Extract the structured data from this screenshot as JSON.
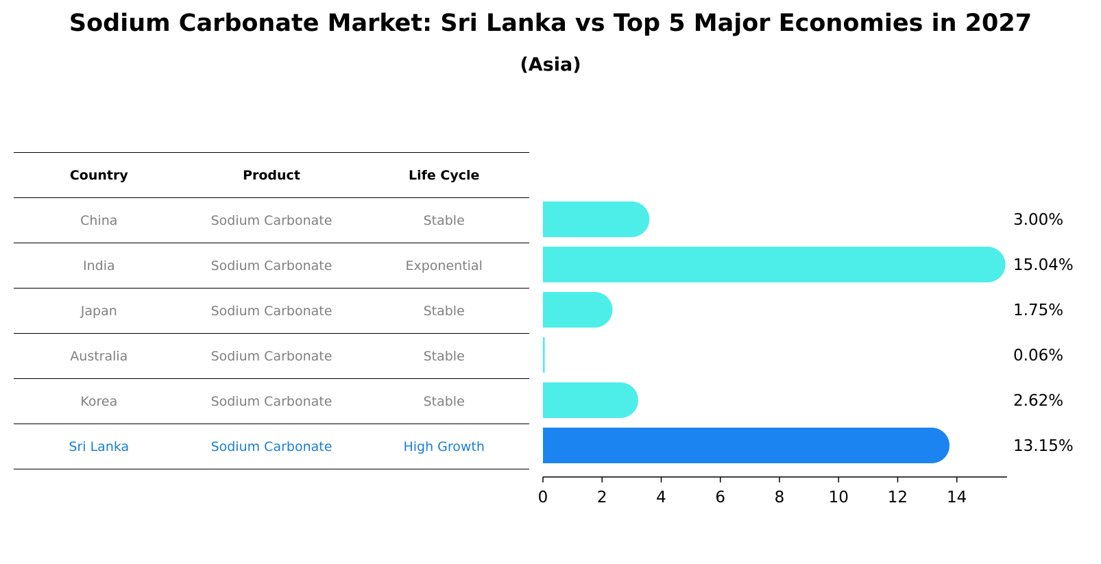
{
  "title": "Sodium Carbonate Market: Sri Lanka vs Top 5 Major Economies in 2027",
  "subtitle": "(Asia)",
  "table": {
    "headers": [
      "Country",
      "Product",
      "Life Cycle"
    ],
    "rows": [
      {
        "country": "China",
        "product": "Sodium Carbonate",
        "life_cycle": "Stable"
      },
      {
        "country": "India",
        "product": "Sodium Carbonate",
        "life_cycle": "Exponential"
      },
      {
        "country": "Japan",
        "product": "Sodium Carbonate",
        "life_cycle": "Stable"
      },
      {
        "country": "Australia",
        "product": "Sodium Carbonate",
        "life_cycle": "Stable"
      },
      {
        "country": "Korea",
        "product": "Sodium Carbonate",
        "life_cycle": "Stable"
      },
      {
        "country": "Sri Lanka",
        "product": "Sodium Carbonate",
        "life_cycle": "High Growth"
      }
    ]
  },
  "colors": {
    "bar": "#4deee8",
    "highlight_bar": "#1b84f0",
    "highlight_text": "#1a7fd4",
    "muted_text": "#808080"
  },
  "chart_data": {
    "type": "bar",
    "orientation": "horizontal",
    "categories": [
      "China",
      "India",
      "Japan",
      "Australia",
      "Korea",
      "Sri Lanka"
    ],
    "values": [
      3.0,
      15.04,
      1.75,
      0.06,
      2.62,
      13.15
    ],
    "value_labels": [
      "3.00%",
      "15.04%",
      "1.75%",
      "0.06%",
      "2.62%",
      "13.15%"
    ],
    "highlight_index": 5,
    "xlim": [
      0,
      15.7
    ],
    "xticks": [
      0,
      2,
      4,
      6,
      8,
      10,
      12,
      14
    ],
    "xlabel": "",
    "ylabel": ""
  }
}
